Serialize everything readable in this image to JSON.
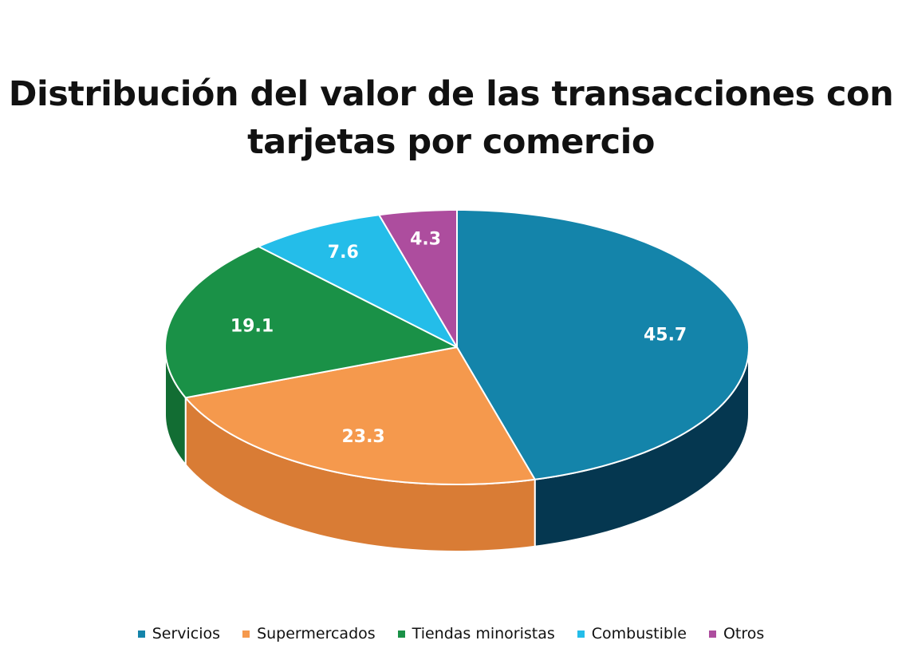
{
  "chart_data": {
    "type": "pie",
    "title_lines": [
      "Distribución del valor de las transacciones con",
      "tarjetas por comercio"
    ],
    "slices": [
      {
        "label": "Servicios",
        "value": 45.7,
        "display": "45.7",
        "color": "#1484aa",
        "side": "#053750"
      },
      {
        "label": "Supermercados",
        "value": 23.3,
        "display": "23.3",
        "color": "#f5994d",
        "side": "#d97c35"
      },
      {
        "label": "Tiendas minoristas",
        "value": 19.1,
        "display": "19.1",
        "color": "#1a9147",
        "side": "#126d33"
      },
      {
        "label": "Combustible",
        "value": 7.6,
        "display": "7.6",
        "color": "#24bde9",
        "side": "#1a8fb3"
      },
      {
        "label": "Otros",
        "value": 4.3,
        "display": "4.3",
        "color": "#ad4d9e",
        "side": "#84367a"
      }
    ],
    "legend_position": "bottom"
  }
}
